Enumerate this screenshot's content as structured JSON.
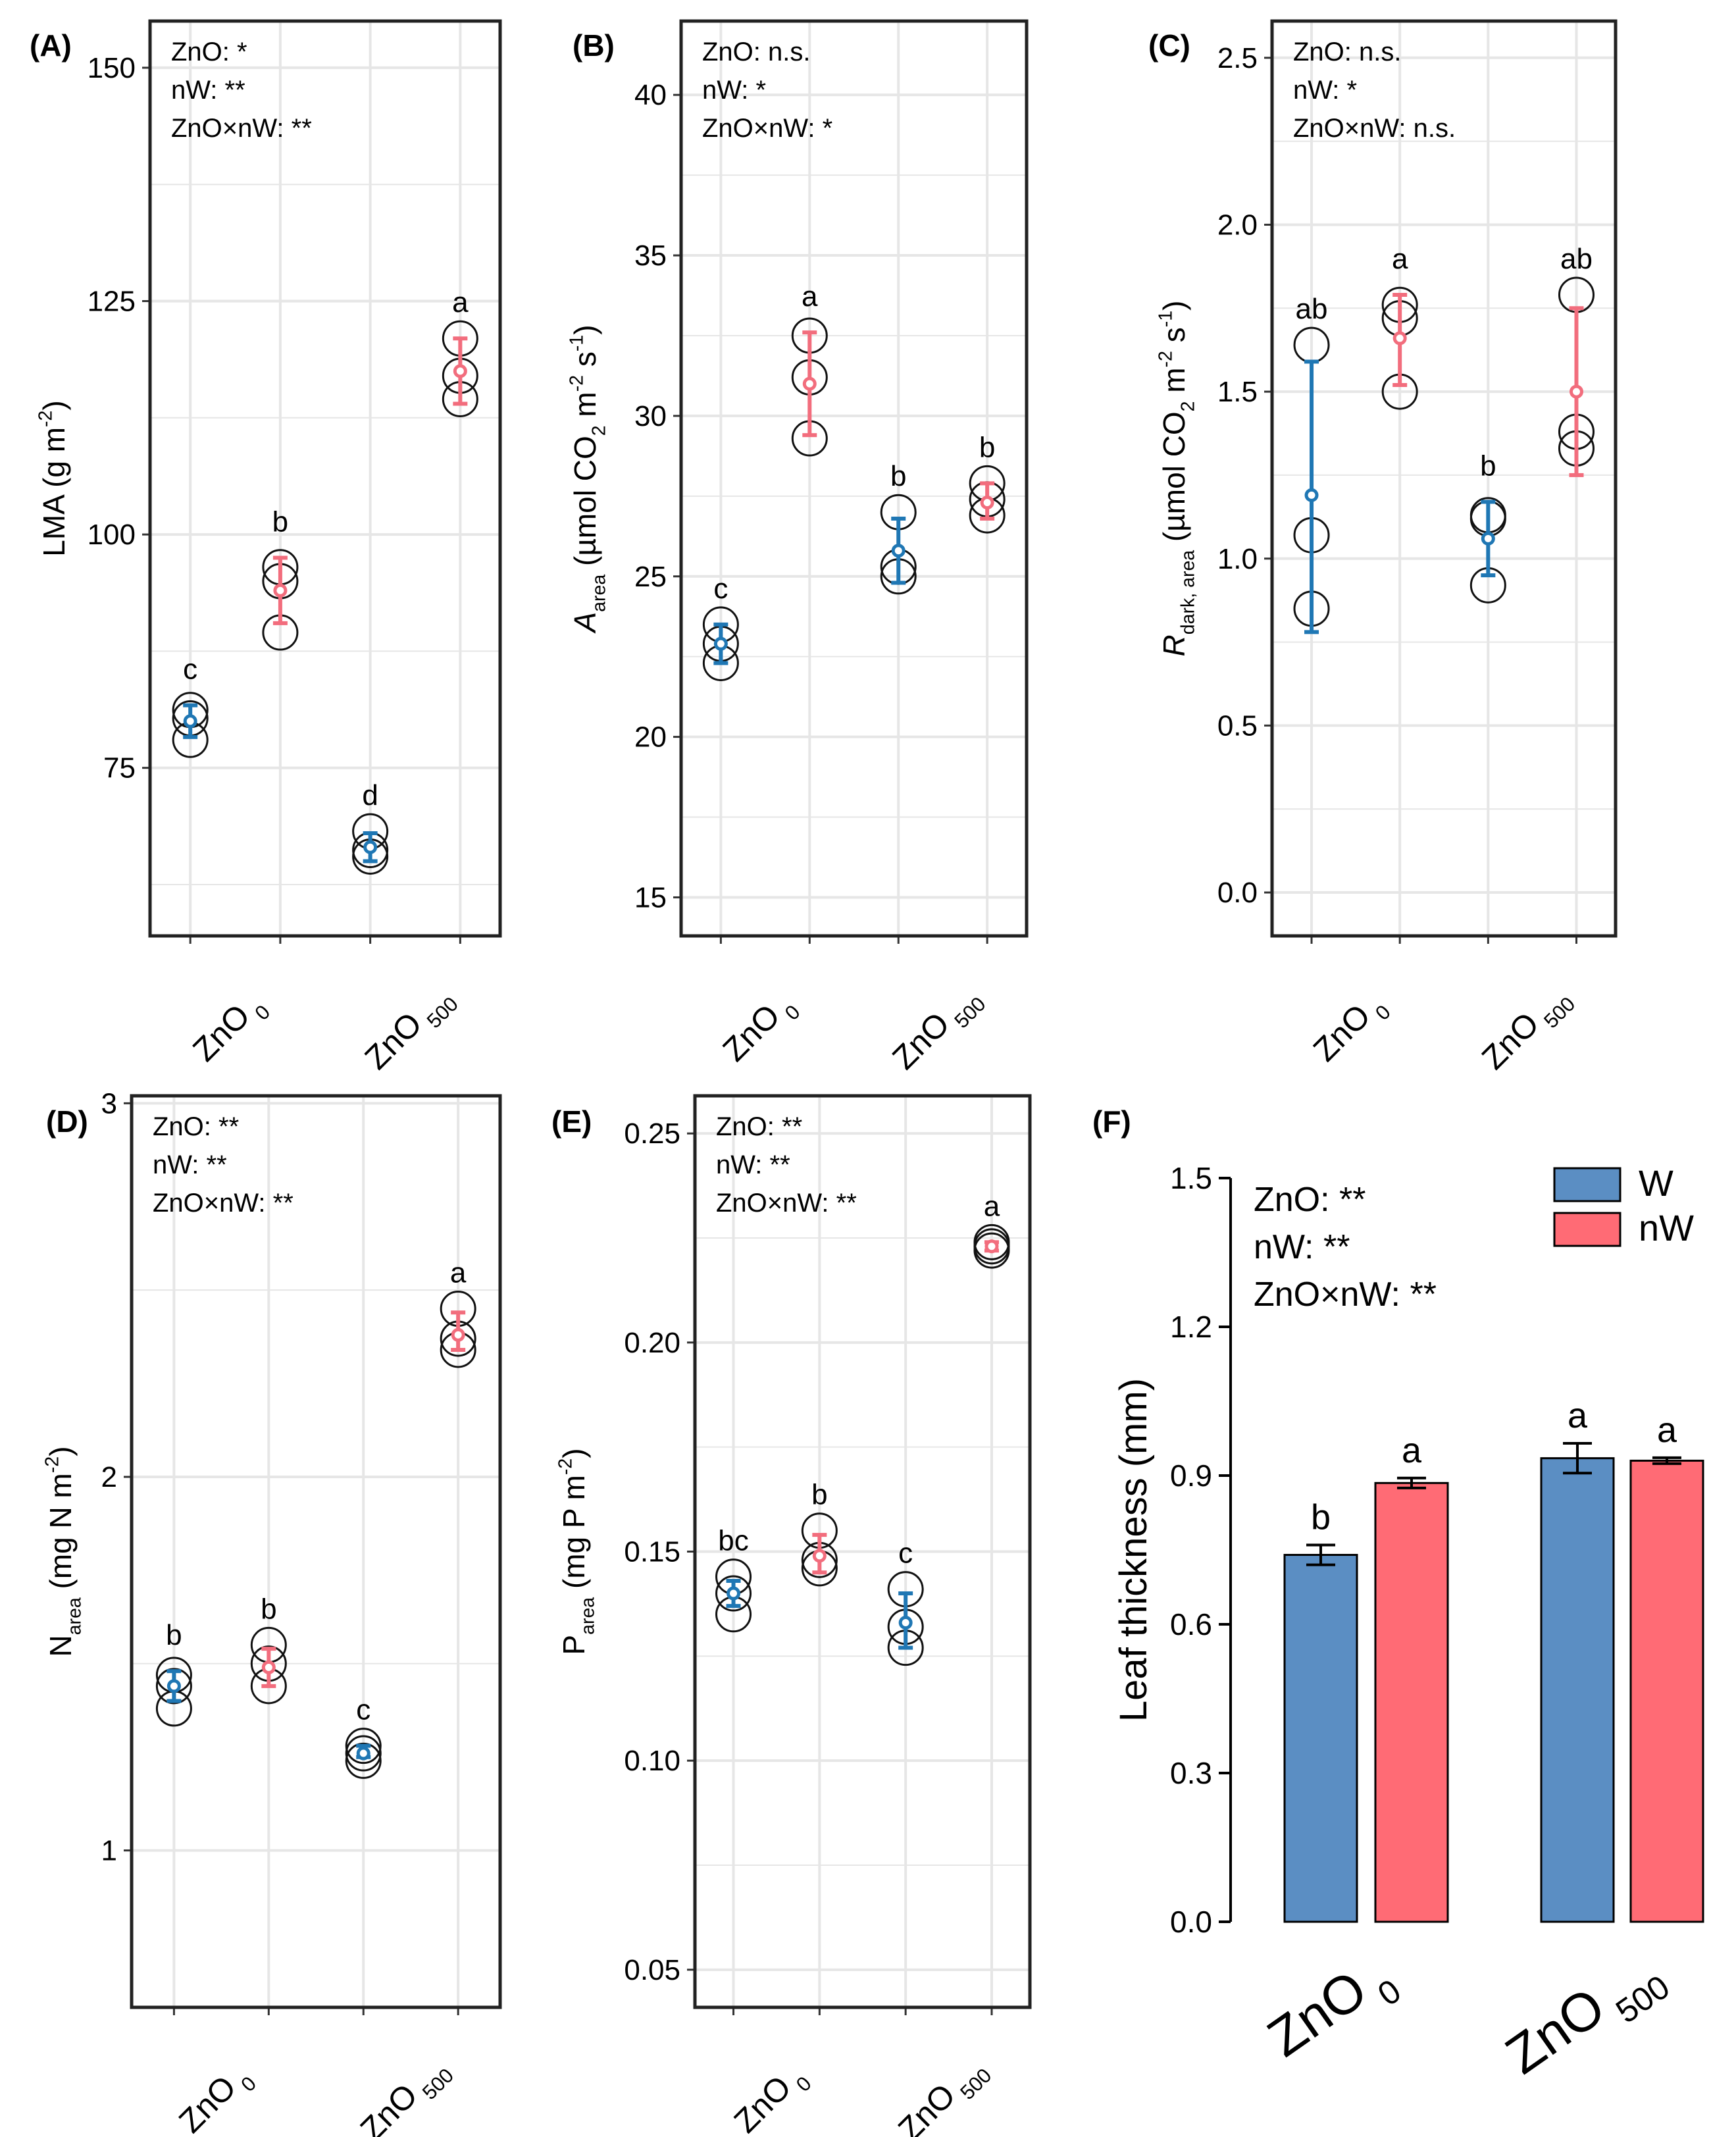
{
  "colors": {
    "W_point": "#1f77b4",
    "nW_point": "#f26d7d",
    "W_bar": "#5b8ec3",
    "nW_bar": "#ff6b75",
    "grid": "#e6e6e6",
    "frame": "#222222",
    "replicate": "#111111"
  },
  "chart_data": [
    {
      "id": "A",
      "panel_label": "(A)",
      "type": "scatter",
      "categories": [
        "ZnO0-W",
        "ZnO0-nW",
        "ZnO500-W",
        "ZnO500-nW"
      ],
      "xtick_labels": [
        {
          "base": "ZnO",
          "sub": "0"
        },
        {
          "base": "ZnO",
          "sub": "500"
        }
      ],
      "ylabel": [
        {
          "t": "LMA (g m"
        },
        {
          "t": "-2",
          "sup": true
        },
        {
          "t": ")"
        }
      ],
      "ylim": [
        57,
        155
      ],
      "yticks": [
        75,
        100,
        125,
        150
      ],
      "ytick_labels": [
        "75",
        "100",
        "125",
        "150"
      ],
      "stats": [
        "ZnO: *",
        "nW: **",
        "ZnO×nW: **"
      ],
      "series": [
        {
          "name": "W",
          "cat": 0,
          "mean": 80,
          "lo": 78.3,
          "hi": 81.7,
          "reps": [
            78,
            80.3,
            81.2
          ],
          "letter": "c"
        },
        {
          "name": "nW",
          "cat": 1,
          "mean": 94,
          "lo": 90.5,
          "hi": 97.5,
          "reps": [
            89.5,
            95,
            96.5
          ],
          "letter": "b"
        },
        {
          "name": "W",
          "cat": 2,
          "mean": 66.5,
          "lo": 65,
          "hi": 68,
          "reps": [
            65.5,
            66.2,
            68.2
          ],
          "letter": "d"
        },
        {
          "name": "nW",
          "cat": 3,
          "mean": 117.5,
          "lo": 114,
          "hi": 121,
          "reps": [
            114.5,
            117,
            121
          ],
          "letter": "a"
        }
      ]
    },
    {
      "id": "B",
      "panel_label": "(B)",
      "type": "scatter",
      "categories": [
        "ZnO0-W",
        "ZnO0-nW",
        "ZnO500-W",
        "ZnO500-nW"
      ],
      "xtick_labels": [
        {
          "base": "ZnO",
          "sub": "0"
        },
        {
          "base": "ZnO",
          "sub": "500"
        }
      ],
      "ylabel": [
        {
          "t": "A",
          "italic": true
        },
        {
          "t": "area",
          "sub": true
        },
        {
          "t": " (µmol CO"
        },
        {
          "t": "2",
          "sub": true
        },
        {
          "t": " m"
        },
        {
          "t": "-2",
          "sup": true
        },
        {
          "t": " s"
        },
        {
          "t": "-1",
          "sup": true
        },
        {
          "t": ")"
        }
      ],
      "ylim": [
        13.8,
        42.3
      ],
      "yticks": [
        15,
        20,
        25,
        30,
        35,
        40
      ],
      "ytick_labels": [
        "15",
        "20",
        "25",
        "30",
        "35",
        "40"
      ],
      "stats": [
        "ZnO: n.s.",
        "nW: *",
        "ZnO×nW: *"
      ],
      "series": [
        {
          "name": "W",
          "cat": 0,
          "mean": 22.9,
          "lo": 22.3,
          "hi": 23.5,
          "reps": [
            22.3,
            22.9,
            23.5
          ],
          "letter": "c"
        },
        {
          "name": "nW",
          "cat": 1,
          "mean": 31,
          "lo": 29.4,
          "hi": 32.6,
          "reps": [
            29.3,
            31.2,
            32.5
          ],
          "letter": "a"
        },
        {
          "name": "W",
          "cat": 2,
          "mean": 25.8,
          "lo": 24.8,
          "hi": 26.8,
          "reps": [
            25,
            25.3,
            27
          ],
          "letter": "b"
        },
        {
          "name": "nW",
          "cat": 3,
          "mean": 27.3,
          "lo": 26.8,
          "hi": 27.9,
          "reps": [
            26.9,
            27.4,
            27.9
          ],
          "letter": "b"
        }
      ]
    },
    {
      "id": "C",
      "panel_label": "(C)",
      "type": "scatter",
      "categories": [
        "ZnO0-W",
        "ZnO0-nW",
        "ZnO500-W",
        "ZnO500-nW"
      ],
      "xtick_labels": [
        {
          "base": "ZnO",
          "sub": "0"
        },
        {
          "base": "ZnO",
          "sub": "500"
        }
      ],
      "ylabel": [
        {
          "t": "R",
          "italic": true
        },
        {
          "t": "dark, area",
          "sub": true
        },
        {
          "t": " (µmol CO"
        },
        {
          "t": "2",
          "sub": true
        },
        {
          "t": " m"
        },
        {
          "t": "-2",
          "sup": true
        },
        {
          "t": " s"
        },
        {
          "t": "-1",
          "sup": true
        },
        {
          "t": ")"
        }
      ],
      "ylim": [
        -0.13,
        2.61
      ],
      "yticks": [
        0,
        0.5,
        1,
        1.5,
        2,
        2.5
      ],
      "ytick_labels": [
        "0.0",
        "0.5",
        "1.0",
        "1.5",
        "2.0",
        "2.5"
      ],
      "stats": [
        "ZnO: n.s.",
        "nW: *",
        "ZnO×nW: n.s."
      ],
      "series": [
        {
          "name": "W",
          "cat": 0,
          "mean": 1.19,
          "lo": 0.78,
          "hi": 1.59,
          "reps": [
            0.85,
            1.07,
            1.64
          ],
          "letter": "ab"
        },
        {
          "name": "nW",
          "cat": 1,
          "mean": 1.66,
          "lo": 1.52,
          "hi": 1.79,
          "reps": [
            1.5,
            1.72,
            1.76
          ],
          "letter": "a"
        },
        {
          "name": "W",
          "cat": 2,
          "mean": 1.06,
          "lo": 0.95,
          "hi": 1.17,
          "reps": [
            0.92,
            1.12,
            1.13
          ],
          "letter": "b"
        },
        {
          "name": "nW",
          "cat": 3,
          "mean": 1.5,
          "lo": 1.25,
          "hi": 1.75,
          "reps": [
            1.33,
            1.38,
            1.79
          ],
          "letter": "ab"
        }
      ]
    },
    {
      "id": "D",
      "panel_label": "(D)",
      "type": "scatter",
      "categories": [
        "ZnO0-W",
        "ZnO0-nW",
        "ZnO500-W",
        "ZnO500-nW"
      ],
      "xtick_labels": [
        {
          "base": "ZnO",
          "sub": "0"
        },
        {
          "base": "ZnO",
          "sub": "500"
        }
      ],
      "ylabel": [
        {
          "t": "N"
        },
        {
          "t": "area",
          "sub": true
        },
        {
          "t": " (mg N m"
        },
        {
          "t": "-2",
          "sup": true
        },
        {
          "t": ")"
        }
      ],
      "ylim": [
        0.58,
        3.02
      ],
      "yticks": [
        1,
        2,
        3
      ],
      "ytick_labels": [
        "1",
        "2",
        "3"
      ],
      "stats": [
        "ZnO: **",
        "nW: **",
        "ZnO×nW: **"
      ],
      "series": [
        {
          "name": "W",
          "cat": 0,
          "mean": 1.44,
          "lo": 1.4,
          "hi": 1.48,
          "reps": [
            1.38,
            1.44,
            1.47
          ],
          "letter": "b"
        },
        {
          "name": "nW",
          "cat": 1,
          "mean": 1.49,
          "lo": 1.44,
          "hi": 1.54,
          "reps": [
            1.44,
            1.5,
            1.55
          ],
          "letter": "b"
        },
        {
          "name": "W",
          "cat": 2,
          "mean": 1.26,
          "lo": 1.25,
          "hi": 1.28,
          "reps": [
            1.24,
            1.26,
            1.28
          ],
          "letter": "c"
        },
        {
          "name": "nW",
          "cat": 3,
          "mean": 2.38,
          "lo": 2.34,
          "hi": 2.44,
          "reps": [
            2.34,
            2.37,
            2.45
          ],
          "letter": "a"
        }
      ]
    },
    {
      "id": "E",
      "panel_label": "(E)",
      "type": "scatter",
      "categories": [
        "ZnO0-W",
        "ZnO0-nW",
        "ZnO500-W",
        "ZnO500-nW"
      ],
      "xtick_labels": [
        {
          "base": "ZnO",
          "sub": "0"
        },
        {
          "base": "ZnO",
          "sub": "500"
        }
      ],
      "ylabel": [
        {
          "t": "P"
        },
        {
          "t": "area",
          "sub": true
        },
        {
          "t": " (mg P m"
        },
        {
          "t": "-2",
          "sup": true
        },
        {
          "t": ")"
        }
      ],
      "ylim": [
        0.041,
        0.259
      ],
      "yticks": [
        0.05,
        0.1,
        0.15,
        0.2,
        0.25
      ],
      "ytick_labels": [
        "0.05",
        "0.10",
        "0.15",
        "0.20",
        "0.25"
      ],
      "stats": [
        "ZnO: **",
        "nW: **",
        "ZnO×nW: **"
      ],
      "series": [
        {
          "name": "W",
          "cat": 0,
          "mean": 0.14,
          "lo": 0.137,
          "hi": 0.143,
          "reps": [
            0.135,
            0.14,
            0.144
          ],
          "letter": "bc"
        },
        {
          "name": "nW",
          "cat": 1,
          "mean": 0.149,
          "lo": 0.145,
          "hi": 0.154,
          "reps": [
            0.146,
            0.148,
            0.155
          ],
          "letter": "b"
        },
        {
          "name": "W",
          "cat": 2,
          "mean": 0.133,
          "lo": 0.127,
          "hi": 0.14,
          "reps": [
            0.127,
            0.132,
            0.141
          ],
          "letter": "c"
        },
        {
          "name": "nW",
          "cat": 3,
          "mean": 0.223,
          "lo": 0.222,
          "hi": 0.224,
          "reps": [
            0.222,
            0.223,
            0.224
          ],
          "letter": "a"
        }
      ]
    },
    {
      "id": "F",
      "panel_label": "(F)",
      "type": "bar",
      "categories": [
        "ZnO0",
        "ZnO500"
      ],
      "xtick_labels": [
        {
          "base": "ZnO",
          "sub": "0"
        },
        {
          "base": "ZnO",
          "sub": "500"
        }
      ],
      "ylabel": [
        {
          "t": "Leaf thickness (mm)"
        }
      ],
      "ylim": [
        0,
        1.5
      ],
      "yticks": [
        0,
        0.3,
        0.6,
        0.9,
        1.2,
        1.5
      ],
      "ytick_labels": [
        "0.0",
        "0.3",
        "0.6",
        "0.9",
        "1.2",
        "1.5"
      ],
      "stats": [
        "ZnO: **",
        "nW: **",
        "ZnO×nW: **"
      ],
      "legend": {
        "position": "top-right",
        "entries": [
          "W",
          "nW"
        ]
      },
      "series": [
        {
          "name": "W",
          "values": [
            0.74,
            0.935
          ],
          "errors": [
            0.02,
            0.03
          ],
          "letters": [
            "b",
            "a"
          ]
        },
        {
          "name": "nW",
          "values": [
            0.885,
            0.93
          ],
          "errors": [
            0.01,
            0.006
          ],
          "letters": [
            "a",
            "a"
          ]
        }
      ]
    }
  ]
}
